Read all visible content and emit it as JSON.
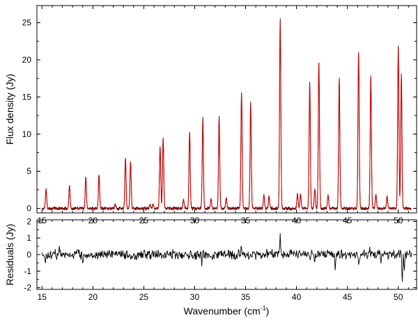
{
  "chart_data": {
    "type": "line",
    "xlabel_main": "Wavenumber (cm",
    "xlabel_sup": "-1",
    "xlabel_end": ")",
    "xlim": [
      14.5,
      51.8
    ],
    "x_ticks": [
      "15",
      "20",
      "25",
      "30",
      "35",
      "40",
      "45",
      "50"
    ],
    "panels": [
      {
        "ylabel": "Flux density (Jy)",
        "ylim": [
          -0.6,
          27.3
        ],
        "y_ticks": [
          "0",
          "5",
          "10",
          "15",
          "20",
          "25"
        ],
        "series_colors": [
          "#000000",
          "#cc0000"
        ],
        "peaks": [
          {
            "x": 15.4,
            "y": 2.6
          },
          {
            "x": 17.7,
            "y": 3.1
          },
          {
            "x": 19.3,
            "y": 4.2
          },
          {
            "x": 20.6,
            "y": 4.5
          },
          {
            "x": 22.2,
            "y": 0.5
          },
          {
            "x": 23.2,
            "y": 6.8
          },
          {
            "x": 23.7,
            "y": 6.3
          },
          {
            "x": 25.6,
            "y": 0.5
          },
          {
            "x": 25.9,
            "y": 0.6
          },
          {
            "x": 26.6,
            "y": 8.3
          },
          {
            "x": 26.9,
            "y": 9.5
          },
          {
            "x": 28.9,
            "y": 1.2
          },
          {
            "x": 29.5,
            "y": 10.3
          },
          {
            "x": 30.8,
            "y": 12.0
          },
          {
            "x": 31.6,
            "y": 1.3
          },
          {
            "x": 32.4,
            "y": 12.1
          },
          {
            "x": 33.1,
            "y": 1.4
          },
          {
            "x": 34.6,
            "y": 15.6
          },
          {
            "x": 35.5,
            "y": 14.2
          },
          {
            "x": 36.8,
            "y": 1.8
          },
          {
            "x": 37.3,
            "y": 1.6
          },
          {
            "x": 38.4,
            "y": 25.2
          },
          {
            "x": 40.1,
            "y": 2.0
          },
          {
            "x": 40.4,
            "y": 1.9
          },
          {
            "x": 41.3,
            "y": 16.8
          },
          {
            "x": 41.8,
            "y": 2.6
          },
          {
            "x": 42.2,
            "y": 19.6
          },
          {
            "x": 43.1,
            "y": 1.8
          },
          {
            "x": 44.2,
            "y": 17.6
          },
          {
            "x": 46.1,
            "y": 21.0
          },
          {
            "x": 47.3,
            "y": 17.9
          },
          {
            "x": 47.8,
            "y": 1.9
          },
          {
            "x": 48.9,
            "y": 1.6
          },
          {
            "x": 50.0,
            "y": 21.7
          },
          {
            "x": 50.3,
            "y": 17.9
          }
        ]
      },
      {
        "ylabel": "Residuals (Jy)",
        "ylim": [
          -2.1,
          2.1
        ],
        "y_ticks": [
          "-2",
          "-1",
          "0",
          "1",
          "2"
        ],
        "series_colors": [
          "#000000"
        ],
        "spikes": [
          {
            "x": 15.3,
            "y": -0.6
          },
          {
            "x": 16.7,
            "y": 0.55
          },
          {
            "x": 19.0,
            "y": -0.55
          },
          {
            "x": 30.7,
            "y": -0.55
          },
          {
            "x": 34.6,
            "y": 0.5
          },
          {
            "x": 38.4,
            "y": 1.5
          },
          {
            "x": 41.8,
            "y": -0.5
          },
          {
            "x": 43.8,
            "y": -0.7
          },
          {
            "x": 46.1,
            "y": -0.6
          },
          {
            "x": 47.2,
            "y": 0.55
          },
          {
            "x": 48.3,
            "y": -0.45
          },
          {
            "x": 50.4,
            "y": -1.9
          },
          {
            "x": 50.6,
            "y": -0.9
          }
        ]
      }
    ]
  }
}
